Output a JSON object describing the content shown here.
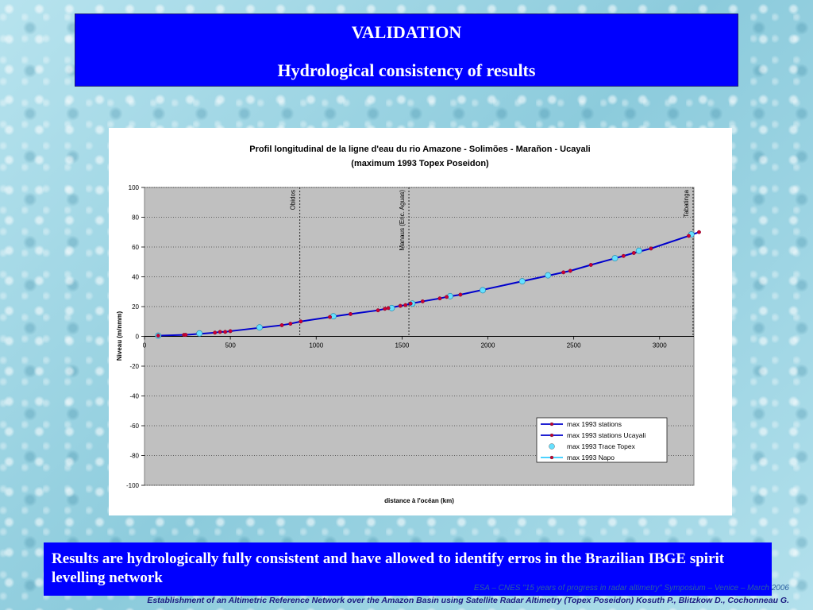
{
  "slide": {
    "heading": "VALIDATION",
    "subheading": "Hydrological consistency of results",
    "results_text": "Results are hydrologically fully consistent and have allowed to identify erros in the Brazilian IBGE spirit levelling network",
    "footer_event": "ESA – CNES \"15 years of progress in radar altimetry\" Symposium – Venice – March 2006",
    "footer_paper": "Establishment of an Altimetric Reference Network over the Amazon Basin using Satellite Radar Altimetry (Topex Poseidon)    Kosuth P., Blitzkow D., Cochonneau G."
  },
  "chart_data": {
    "type": "line",
    "title": "Profil longitudinal de la ligne d'eau du rio Amazone - Solimões - Marañon - Ucayali",
    "subtitle": "(maximum 1993 Topex Poseidon)",
    "xlabel": "distance à l'océan (km)",
    "ylabel": "Niveau (m/nmm)",
    "xlim": [
      0,
      3200
    ],
    "ylim": [
      -100,
      100
    ],
    "xticks": [
      0,
      500,
      1000,
      1500,
      2000,
      2500,
      3000
    ],
    "yticks": [
      100,
      80,
      60,
      40,
      20,
      0,
      -20,
      -40,
      -60,
      -80,
      -100
    ],
    "grid": true,
    "legend_position": "bottom-right",
    "colors": {
      "plot_bg": "#c0c0c0",
      "line": "#0000cc",
      "station_marker": "#cc0033",
      "topex_marker": "#66e0ff",
      "napo_line": "#33ccff"
    },
    "vertical_markers": [
      {
        "x": 905,
        "label": "Obidos"
      },
      {
        "x": 1540,
        "label": "Manaus (Enc. Aguas)"
      },
      {
        "x": 3195,
        "label": "Tabatinga"
      }
    ],
    "series": [
      {
        "name": "max 1993 stations",
        "x": [
          80,
          230,
          240,
          410,
          440,
          470,
          500,
          800,
          850,
          910,
          1080,
          1200,
          1360,
          1400,
          1420,
          1490,
          1520,
          1550,
          1620,
          1720,
          1760,
          1840,
          2440,
          2480,
          2600,
          2790,
          2850,
          2950,
          3170,
          3230
        ],
        "y": [
          0.5,
          1,
          1,
          2.5,
          3,
          3,
          3.5,
          7.5,
          8.5,
          10,
          13,
          15,
          17.5,
          18.5,
          19,
          20.5,
          21,
          22,
          23.5,
          25.5,
          26.5,
          28,
          43,
          44,
          48,
          54,
          56,
          59,
          67.5,
          70
        ]
      },
      {
        "name": "max 1993 stations Ucayali",
        "x": [],
        "y": []
      },
      {
        "name": "max 1993 Trace Topex",
        "x": [
          80,
          320,
          670,
          1100,
          1440,
          1560,
          1780,
          1970,
          2200,
          2350,
          2740,
          2880,
          3185
        ],
        "y": [
          0.5,
          2,
          6,
          13.5,
          19,
          22,
          27,
          31,
          37,
          41,
          52.5,
          57.5,
          68.5
        ]
      },
      {
        "name": "max 1993 Napo",
        "x": [],
        "y": []
      }
    ]
  }
}
